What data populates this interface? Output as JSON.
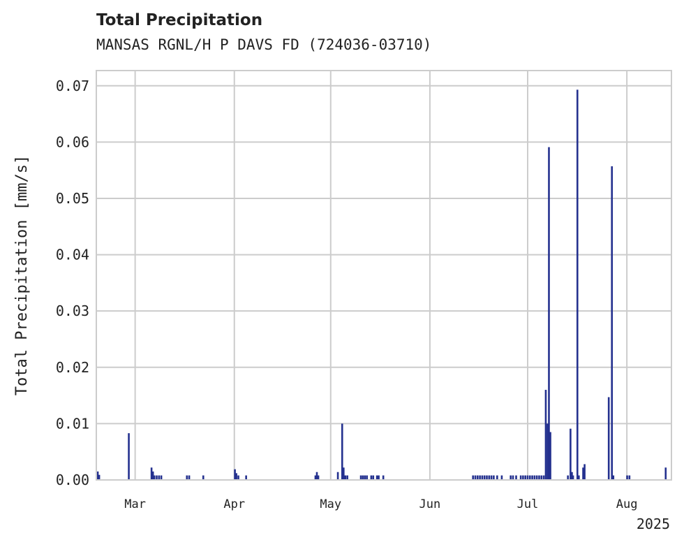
{
  "chart_data": {
    "type": "bar",
    "title": "Total Precipitation",
    "subtitle": "MANSAS RGNL/H P DAVS FD (724036-03710)",
    "ylabel": "Total Precipitation [mm/s]",
    "xlabel": "",
    "year_label": "2025",
    "ylim": [
      0,
      0.0727
    ],
    "xlim_days": [
      0,
      200
    ],
    "yticks": [
      0.0,
      0.01,
      0.02,
      0.03,
      0.04,
      0.05,
      0.06,
      0.07
    ],
    "ytick_labels": [
      "0.00",
      "0.01",
      "0.02",
      "0.03",
      "0.04",
      "0.05",
      "0.06",
      "0.07"
    ],
    "xticks": [
      {
        "label": "Mar",
        "day": 13.5
      },
      {
        "label": "Apr",
        "day": 48
      },
      {
        "label": "May",
        "day": 81.5
      },
      {
        "label": "Jun",
        "day": 116
      },
      {
        "label": "Jul",
        "day": 150
      },
      {
        "label": "Aug",
        "day": 184.5
      }
    ],
    "grid": true,
    "bar_color": "#24318f",
    "grid_color": "#cccccc",
    "x_unit": "days since Feb 17, 2025",
    "points": [
      [
        0.5,
        0.0015
      ],
      [
        1.0,
        0.0009
      ],
      [
        11.3,
        0.0083
      ],
      [
        19.2,
        0.0022
      ],
      [
        19.7,
        0.0015
      ],
      [
        20.2,
        0.0008
      ],
      [
        21.0,
        0.0008
      ],
      [
        21.8,
        0.0008
      ],
      [
        22.6,
        0.0008
      ],
      [
        31.5,
        0.0008
      ],
      [
        32.3,
        0.0008
      ],
      [
        37.2,
        0.0008
      ],
      [
        48.2,
        0.0019
      ],
      [
        48.7,
        0.0012
      ],
      [
        49.4,
        0.0008
      ],
      [
        52.1,
        0.0008
      ],
      [
        76.2,
        0.0008
      ],
      [
        76.7,
        0.0014
      ],
      [
        77.2,
        0.0008
      ],
      [
        84.0,
        0.0014
      ],
      [
        85.5,
        0.01
      ],
      [
        86.0,
        0.0022
      ],
      [
        86.6,
        0.0008
      ],
      [
        87.3,
        0.0008
      ],
      [
        92.0,
        0.0008
      ],
      [
        92.7,
        0.0008
      ],
      [
        93.4,
        0.0008
      ],
      [
        94.1,
        0.0008
      ],
      [
        95.6,
        0.0008
      ],
      [
        96.3,
        0.0008
      ],
      [
        97.6,
        0.0008
      ],
      [
        98.2,
        0.0008
      ],
      [
        99.8,
        0.0008
      ],
      [
        131.0,
        0.0008
      ],
      [
        131.8,
        0.0008
      ],
      [
        132.6,
        0.0008
      ],
      [
        133.4,
        0.0008
      ],
      [
        134.2,
        0.0008
      ],
      [
        135.0,
        0.0008
      ],
      [
        135.8,
        0.0008
      ],
      [
        136.6,
        0.0008
      ],
      [
        137.4,
        0.0008
      ],
      [
        138.2,
        0.0008
      ],
      [
        139.4,
        0.0008
      ],
      [
        141.0,
        0.0008
      ],
      [
        144.1,
        0.0008
      ],
      [
        144.9,
        0.0008
      ],
      [
        146.0,
        0.0008
      ],
      [
        147.6,
        0.0008
      ],
      [
        148.4,
        0.0008
      ],
      [
        149.2,
        0.0008
      ],
      [
        150.0,
        0.0008
      ],
      [
        150.8,
        0.0008
      ],
      [
        151.6,
        0.0008
      ],
      [
        152.4,
        0.0008
      ],
      [
        153.2,
        0.0008
      ],
      [
        154.0,
        0.0008
      ],
      [
        154.8,
        0.0008
      ],
      [
        155.6,
        0.0008
      ],
      [
        156.3,
        0.016
      ],
      [
        156.9,
        0.01
      ],
      [
        157.4,
        0.0591
      ],
      [
        157.9,
        0.0085
      ],
      [
        164.0,
        0.0008
      ],
      [
        164.9,
        0.0091
      ],
      [
        165.4,
        0.0014
      ],
      [
        165.8,
        0.0008
      ],
      [
        167.3,
        0.0693
      ],
      [
        167.8,
        0.0008
      ],
      [
        169.3,
        0.0022
      ],
      [
        169.8,
        0.0028
      ],
      [
        178.2,
        0.0147
      ],
      [
        179.3,
        0.0557
      ],
      [
        179.8,
        0.0008
      ],
      [
        184.6,
        0.0008
      ],
      [
        185.4,
        0.0008
      ],
      [
        198.0,
        0.0022
      ]
    ]
  }
}
